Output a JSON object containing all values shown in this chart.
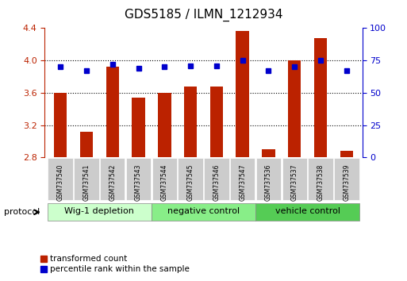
{
  "title": "GDS5185 / ILMN_1212934",
  "samples": [
    "GSM737540",
    "GSM737541",
    "GSM737542",
    "GSM737543",
    "GSM737544",
    "GSM737545",
    "GSM737546",
    "GSM737547",
    "GSM737536",
    "GSM737537",
    "GSM737538",
    "GSM737539"
  ],
  "transformed_counts": [
    3.6,
    3.12,
    3.92,
    3.54,
    3.6,
    3.68,
    3.68,
    4.36,
    2.9,
    4.0,
    4.28,
    2.88
  ],
  "percentile_ranks": [
    70,
    67,
    72,
    69,
    70,
    71,
    71,
    75,
    67,
    70,
    75,
    67
  ],
  "bar_color": "#bb2200",
  "dot_color": "#0000cc",
  "ylim_left": [
    2.8,
    4.4
  ],
  "ylim_right": [
    0,
    100
  ],
  "yticks_left": [
    2.8,
    3.2,
    3.6,
    4.0,
    4.4
  ],
  "yticks_right": [
    0,
    25,
    50,
    75,
    100
  ],
  "groups": [
    {
      "label": "Wig-1 depletion",
      "start": 0,
      "end": 3,
      "color": "#ccffcc"
    },
    {
      "label": "negative control",
      "start": 4,
      "end": 7,
      "color": "#99ee99"
    },
    {
      "label": "vehicle control",
      "start": 8,
      "end": 11,
      "color": "#66dd66"
    }
  ],
  "protocol_label": "protocol",
  "legend_items": [
    {
      "label": "transformed count",
      "color": "#bb2200",
      "marker": "s"
    },
    {
      "label": "percentile rank within the sample",
      "color": "#0000cc",
      "marker": "s"
    }
  ],
  "xticklabel_color": "#333333",
  "left_axis_color": "#bb2200",
  "right_axis_color": "#0000cc"
}
